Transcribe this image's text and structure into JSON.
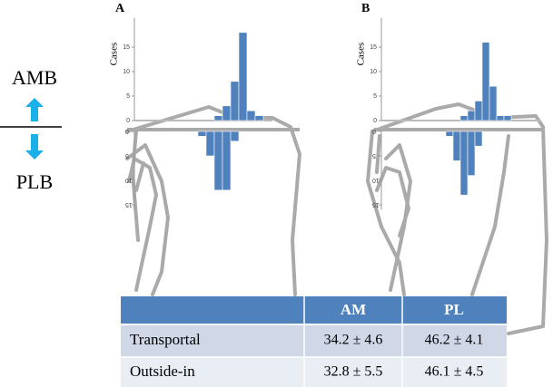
{
  "chart_data": [
    {
      "type": "bar",
      "title": "A",
      "ylabel": "Cases",
      "categories": [
        null,
        null,
        null,
        null,
        null,
        null,
        null,
        null
      ],
      "series": [
        {
          "name": "AMB",
          "color": "#4f81bd",
          "values": [
            null,
            null,
            1,
            3,
            8,
            18,
            2,
            1
          ]
        },
        {
          "name": "PLB",
          "color": "#4f81bd",
          "axis": "y2",
          "values": [
            1,
            5,
            12,
            12,
            2,
            null,
            null,
            null
          ]
        }
      ],
      "ylim": [
        0,
        21
      ],
      "yticks": [
        0,
        5,
        10,
        15
      ],
      "y2lim": [
        0,
        16
      ],
      "y2ticks": [
        0,
        5,
        10,
        15
      ]
    },
    {
      "type": "bar",
      "title": "B",
      "ylabel": "Cases",
      "categories": [
        null,
        null,
        null,
        null,
        null,
        null,
        null,
        null,
        null,
        null
      ],
      "series": [
        {
          "color": "#4f81bd",
          "values": [
            null,
            null,
            1,
            2,
            4,
            16,
            7,
            1,
            1,
            null
          ]
        },
        {
          "color": "#4f81bd",
          "axis": "y2",
          "values": [
            1,
            6,
            13,
            9,
            3,
            null,
            null,
            null,
            null,
            null
          ]
        }
      ],
      "ylim": [
        0,
        21
      ],
      "yticks": [
        0,
        5,
        10,
        15
      ],
      "y2lim": [
        0,
        16
      ],
      "y2ticks": [
        0,
        5,
        10,
        15
      ]
    }
  ],
  "table": {
    "columns": [
      "AM",
      "PL"
    ],
    "rows": [
      [
        "Transportal",
        "34.2 ± 4.6",
        "46.2 ± 4.1"
      ],
      [
        "Outside-in",
        "32.8 ± 5.5",
        "46.1 ± 4.5"
      ]
    ]
  }
}
